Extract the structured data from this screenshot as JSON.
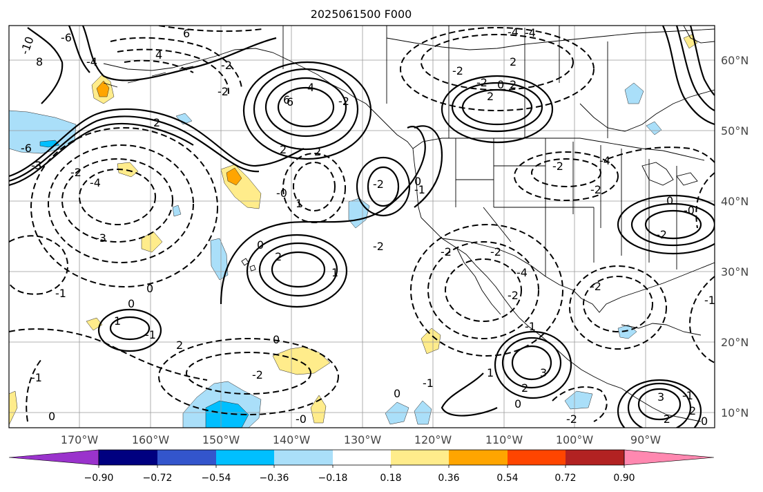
{
  "title": "2025061500 F000",
  "map": {
    "lon_range": [
      -180,
      -80
    ],
    "lat_range": [
      8,
      67
    ],
    "lon_ticks": [
      "170°W",
      "160°W",
      "150°W",
      "140°W",
      "130°W",
      "120°W",
      "110°W",
      "100°W",
      "90°W"
    ],
    "lat_ticks": [
      "60°N",
      "50°N",
      "40°N",
      "30°N",
      "20°N",
      "10°N"
    ],
    "grid": true,
    "contour_labels": [
      "-10",
      "-6",
      "8",
      "6",
      "4",
      "-4",
      "2",
      "-2",
      "6",
      "-3",
      "-2",
      "-6",
      "3",
      "-2",
      "-4",
      "-4",
      "2",
      "-2",
      "2",
      "-2",
      "6",
      "2",
      "4",
      "2",
      "-2",
      "0",
      "2",
      "-2",
      "-0",
      "1",
      "-2",
      "-4",
      "-3",
      "-1",
      "0",
      "-2",
      "-1",
      "-2",
      "0",
      "2",
      "0",
      "-2",
      "-0",
      "-2",
      "3",
      "-1",
      "2",
      "1",
      "-1",
      "0",
      "1",
      "0",
      "2",
      "-2",
      "-2",
      "-2",
      "0",
      "1",
      "-1",
      "0",
      "-0",
      "-1",
      "-2",
      "-4",
      "-2",
      "-1",
      "3",
      "-1",
      "2",
      "0",
      "-2",
      "0",
      "0",
      "-4"
    ]
  },
  "colorbar": {
    "colors": [
      "#9a33cc",
      "#000080",
      "#3355cc",
      "#00bfff",
      "#aadff9",
      "#ffffff",
      "#ffec8b",
      "#ffa500",
      "#ff4500",
      "#b22222",
      "#ff88b0"
    ],
    "tick_labels": [
      "−0.90",
      "−0.72",
      "−0.54",
      "−0.36",
      "−0.18",
      "0.18",
      "0.36",
      "0.54",
      "0.72",
      "0.90"
    ]
  }
}
